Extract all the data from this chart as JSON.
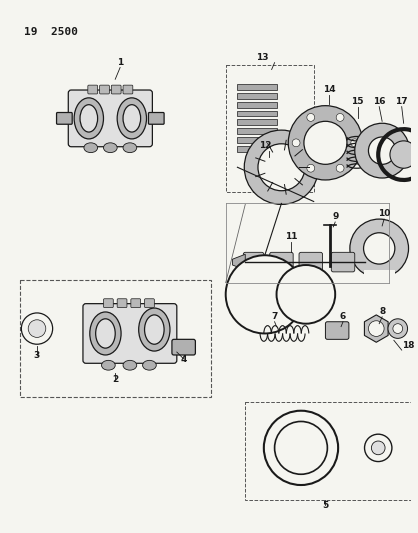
{
  "title": "19  2500",
  "bg_color": "#f5f5f0",
  "line_color": "#1a1a1a",
  "figsize": [
    4.18,
    5.33
  ],
  "dpi": 100
}
